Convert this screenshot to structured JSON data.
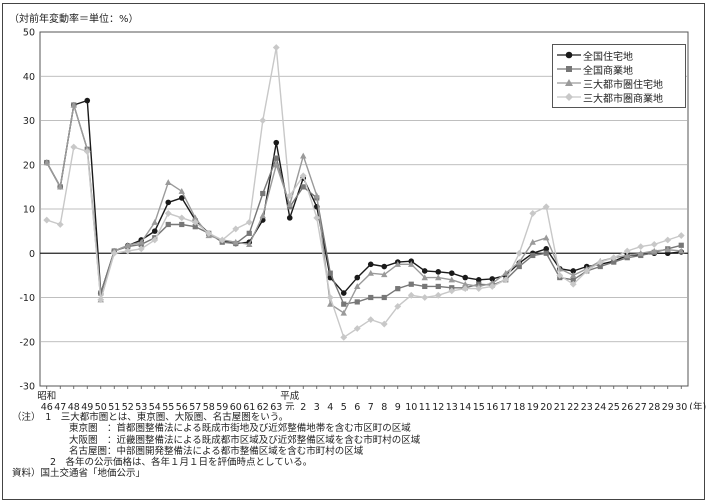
{
  "unit_label": "（対前年変動率＝単位：%）",
  "chart_data": {
    "type": "line",
    "ylim": [
      -30,
      50
    ],
    "y_ticks": [
      50,
      40,
      30,
      20,
      10,
      0,
      -10,
      -20,
      -30
    ],
    "era_labels": {
      "showa": "昭和",
      "heisei": "平成",
      "gan": "元"
    },
    "x_unit": "(年)",
    "categories": [
      "46",
      "47",
      "48",
      "49",
      "50",
      "51",
      "52",
      "53",
      "54",
      "55",
      "56",
      "57",
      "58",
      "59",
      "60",
      "61",
      "62",
      "63",
      "元",
      "2",
      "3",
      "4",
      "5",
      "6",
      "7",
      "8",
      "9",
      "10",
      "11",
      "12",
      "13",
      "14",
      "15",
      "16",
      "17",
      "18",
      "19",
      "20",
      "21",
      "22",
      "23",
      "24",
      "25",
      "26",
      "27",
      "28",
      "29",
      "30"
    ],
    "series": [
      {
        "name": "全国住宅地",
        "color": "#1a1a1a",
        "marker": "circle",
        "values": [
          20.5,
          15,
          33.5,
          34.5,
          -9,
          0.5,
          1.7,
          3,
          5,
          11.5,
          12.5,
          7.5,
          4.5,
          2.8,
          2.2,
          2.5,
          7.5,
          25,
          8,
          17,
          10.5,
          -5.5,
          -9,
          -5.5,
          -2.5,
          -3,
          -2,
          -1.8,
          -4,
          -4.2,
          -4.5,
          -5.5,
          -6,
          -5.8,
          -5,
          -2.2,
          0,
          1,
          -3.5,
          -4,
          -3,
          -2.5,
          -1.8,
          -0.5,
          -0.3,
          0,
          0,
          0.3
        ]
      },
      {
        "name": "全国商業地",
        "color": "#777777",
        "marker": "square",
        "values": [
          20.5,
          15,
          33.5,
          23.5,
          -9,
          0.5,
          1.5,
          2,
          3.5,
          6.5,
          6.5,
          6,
          4.5,
          2.5,
          2.2,
          4.5,
          13.5,
          21.5,
          10.5,
          15,
          12.5,
          -4.5,
          -11.5,
          -11,
          -10,
          -10,
          -8,
          -7,
          -7.5,
          -7.5,
          -7.8,
          -7.8,
          -7,
          -7.2,
          -6,
          -3,
          -0.5,
          0,
          -5.5,
          -6,
          -4,
          -3,
          -2,
          -1,
          -0.5,
          0.2,
          1,
          1.8
        ]
      },
      {
        "name": "三大都市圏住宅地",
        "color": "#9a9a9a",
        "marker": "triangle",
        "values": [
          20.5,
          15,
          33.5,
          23.5,
          -10.5,
          0.5,
          1.8,
          2.5,
          7,
          16,
          14,
          8,
          4,
          3,
          2.5,
          2,
          8.5,
          20,
          11,
          22,
          13,
          -11.5,
          -13.5,
          -7.5,
          -4.5,
          -4.8,
          -2.5,
          -2.5,
          -5.5,
          -5.5,
          -6,
          -7,
          -7.5,
          -6.8,
          -4.5,
          -2,
          2.5,
          3.5,
          -3.5,
          -5,
          -3.5,
          -1.8,
          -1,
          -0.5,
          0,
          0.5,
          0.8,
          0.5
        ]
      },
      {
        "name": "三大都市圏商業地",
        "color": "#c8c8c8",
        "marker": "diamond",
        "values": [
          7.5,
          6.5,
          24,
          23,
          -10.5,
          0,
          0.5,
          1,
          3,
          9,
          8,
          7,
          4.5,
          3,
          5.5,
          7,
          30,
          46.5,
          13,
          17.5,
          8,
          -10,
          -19,
          -17,
          -15,
          -16,
          -12,
          -9.5,
          -10,
          -9.5,
          -8.5,
          -8,
          -8,
          -7.5,
          -6,
          0,
          9,
          10.5,
          -5,
          -7,
          -4,
          -2,
          -1,
          0.5,
          1.5,
          2,
          3,
          4
        ]
      }
    ]
  },
  "notes": {
    "line1": "（注）　1　三大都市圏とは、東京圏、大阪圏、名古屋圏をいう。",
    "line2": "　　　　　　東京圏　：首都圏整備法による既成市街地及び近郊整備地帯を含む市区町の区域",
    "line3": "　　　　　　大阪圏　：近畿圏整備法による既成都市区域及び近郊整備区域を含む市町村の区域",
    "line4": "　　　　　　名古屋圏：中部圏開発整備法による都市整備区域を含む市町村の区域",
    "line5": "　　　　2　各年の公示価格は、各年１月１日を評価時点としている。",
    "line6": "資料）国土交通省「地価公示」"
  }
}
